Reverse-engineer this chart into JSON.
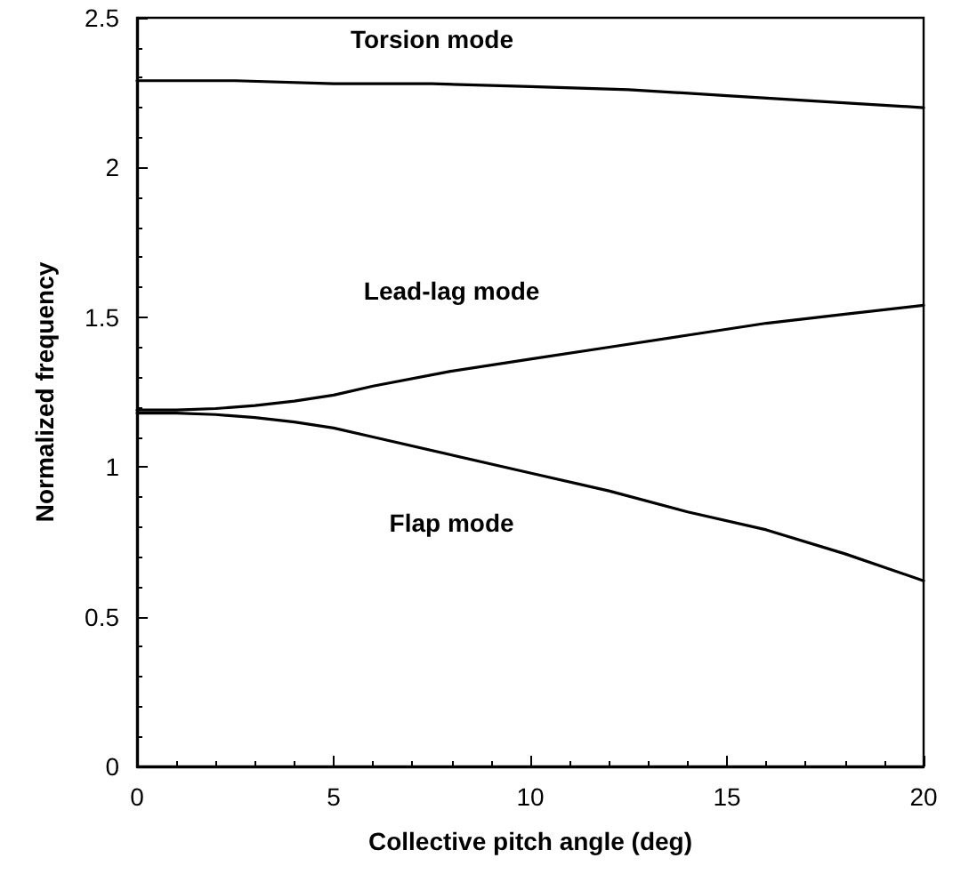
{
  "chart_data": {
    "type": "line",
    "xlabel": "Collective pitch angle (deg)",
    "ylabel": "Normalized frequency",
    "xlim": [
      0,
      20
    ],
    "xticks": [
      0,
      5,
      10,
      15,
      20
    ],
    "ylim": [
      0,
      2.5
    ],
    "yticks": [
      0,
      0.5,
      1,
      1.5,
      2,
      2.5
    ],
    "grid": false,
    "marker": "none",
    "line_style": "solid",
    "series": [
      {
        "name": "Torsion mode",
        "color": "#000000",
        "x": [
          0,
          2.5,
          5,
          7.5,
          10,
          12.5,
          15,
          17.5,
          20
        ],
        "values": [
          2.29,
          2.29,
          2.28,
          2.28,
          2.27,
          2.26,
          2.24,
          2.22,
          2.2
        ]
      },
      {
        "name": "Lead-lag mode",
        "color": "#000000",
        "x": [
          0,
          1,
          2,
          3,
          4,
          5,
          6,
          8,
          10,
          12,
          14,
          16,
          18,
          20
        ],
        "values": [
          1.19,
          1.19,
          1.195,
          1.205,
          1.22,
          1.24,
          1.27,
          1.32,
          1.36,
          1.4,
          1.44,
          1.48,
          1.51,
          1.54
        ]
      },
      {
        "name": "Flap mode",
        "color": "#000000",
        "x": [
          0,
          1,
          2,
          3,
          4,
          5,
          6,
          8,
          10,
          12,
          14,
          16,
          18,
          20
        ],
        "values": [
          1.18,
          1.18,
          1.175,
          1.165,
          1.15,
          1.13,
          1.1,
          1.04,
          0.98,
          0.92,
          0.85,
          0.79,
          0.71,
          0.62
        ]
      }
    ]
  }
}
